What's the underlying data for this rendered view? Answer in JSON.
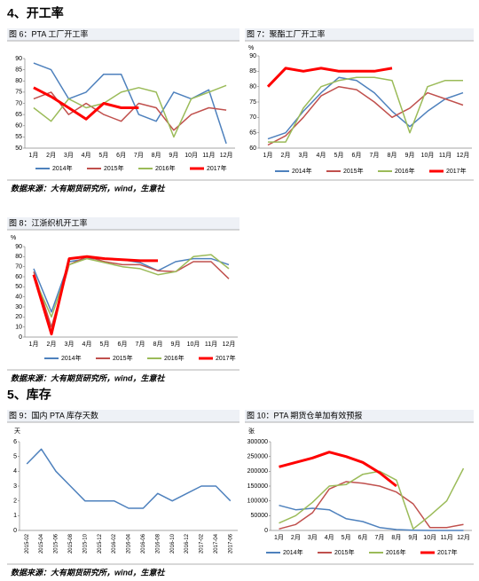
{
  "headings": [
    "4、开工率",
    "5、库存"
  ],
  "notes": [
    "数据来源：大有期货研究所，wind，生意社",
    "数据来源：大有期货研究所，wind，生意社",
    "数据来源：大有期货研究所，wind，生意社"
  ],
  "chart_data": [
    {
      "type": "line",
      "title": "图 6：PTA 工厂开工率",
      "legend": "bottom",
      "categories": [
        "1月",
        "2月",
        "3月",
        "4月",
        "5月",
        "6月",
        "7月",
        "8月",
        "9月",
        "10月",
        "11月",
        "12月"
      ],
      "ylim": [
        50,
        90
      ],
      "yticks": [
        50,
        55,
        60,
        65,
        70,
        75,
        80,
        85,
        90
      ],
      "series": [
        {
          "name": "2014年",
          "color": "#4e81bd",
          "values": [
            88,
            85,
            72,
            75,
            83,
            83,
            65,
            62,
            75,
            72,
            76,
            52
          ]
        },
        {
          "name": "2015年",
          "color": "#c0504d",
          "values": [
            72,
            75,
            65,
            70,
            65,
            62,
            70,
            68,
            58,
            65,
            68,
            67
          ]
        },
        {
          "name": "2016年",
          "color": "#9bbb59",
          "values": [
            68,
            62,
            72,
            68,
            70,
            75,
            77,
            75,
            55,
            72,
            75,
            78
          ]
        },
        {
          "name": "2017年",
          "color": "#ff0000",
          "line_width": 3,
          "values": [
            77,
            73,
            68,
            63,
            70,
            68,
            68,
            null,
            null,
            null,
            null,
            null
          ]
        }
      ]
    },
    {
      "type": "line",
      "title": "图 7：聚酯工厂开工率",
      "y_unit": "%",
      "legend": "bottom",
      "categories": [
        "1月",
        "2月",
        "3月",
        "4月",
        "5月",
        "6月",
        "7月",
        "8月",
        "9月",
        "10月",
        "11月",
        "12月"
      ],
      "ylim": [
        60,
        90
      ],
      "yticks": [
        60,
        65,
        70,
        75,
        80,
        85,
        90
      ],
      "series": [
        {
          "name": "2014年",
          "color": "#4e81bd",
          "values": [
            63,
            65,
            72,
            78,
            83,
            82,
            78,
            72,
            67,
            72,
            76,
            78
          ]
        },
        {
          "name": "2015年",
          "color": "#c0504d",
          "values": [
            61,
            64,
            70,
            77,
            80,
            79,
            75,
            70,
            73,
            78,
            76,
            74
          ]
        },
        {
          "name": "2016年",
          "color": "#9bbb59",
          "values": [
            62,
            62,
            73,
            80,
            82,
            83,
            83,
            82,
            65,
            80,
            82,
            82
          ]
        },
        {
          "name": "2017年",
          "color": "#ff0000",
          "line_width": 3,
          "values": [
            80,
            86,
            85,
            86,
            85,
            85,
            85,
            86,
            null,
            null,
            null,
            null
          ]
        }
      ]
    },
    {
      "type": "line",
      "title": "图 8：江浙织机开工率",
      "y_unit": "%",
      "legend": "bottom",
      "categories": [
        "1月",
        "2月",
        "3月",
        "4月",
        "5月",
        "6月",
        "7月",
        "8月",
        "9月",
        "10月",
        "11月",
        "12月"
      ],
      "ylim": [
        0,
        90
      ],
      "yticks": [
        0,
        10,
        20,
        30,
        40,
        50,
        60,
        70,
        80,
        90
      ],
      "series": [
        {
          "name": "2014年",
          "color": "#4e81bd",
          "values": [
            68,
            25,
            75,
            78,
            78,
            77,
            74,
            66,
            75,
            78,
            78,
            72
          ]
        },
        {
          "name": "2015年",
          "color": "#c0504d",
          "values": [
            65,
            10,
            72,
            80,
            75,
            72,
            72,
            66,
            65,
            75,
            75,
            58
          ]
        },
        {
          "name": "2016年",
          "color": "#9bbb59",
          "values": [
            60,
            20,
            72,
            78,
            74,
            70,
            68,
            62,
            65,
            80,
            82,
            68
          ]
        },
        {
          "name": "2017年",
          "color": "#ff0000",
          "line_width": 3,
          "values": [
            62,
            3,
            78,
            80,
            78,
            77,
            76,
            76,
            null,
            null,
            null,
            null
          ]
        }
      ]
    },
    {
      "type": "line",
      "title": "图 9：国内 PTA 库存天数",
      "y_unit": "天",
      "rotate_x": true,
      "categories": [
        "2015-02",
        "2015-04",
        "2015-06",
        "2015-08",
        "2015-10",
        "2015-12",
        "2016-02",
        "2016-04",
        "2016-06",
        "2016-08",
        "2016-10",
        "2016-12",
        "2017-02",
        "2017-04",
        "2017-06"
      ],
      "ylim": [
        0,
        6
      ],
      "yticks": [
        0,
        1,
        2,
        3,
        4,
        5,
        6
      ],
      "series": [
        {
          "color": "#4e81bd",
          "values": [
            4.5,
            5.5,
            4,
            3,
            2,
            2,
            2,
            1.5,
            1.5,
            2.5,
            2,
            2.5,
            3,
            3,
            2
          ]
        }
      ]
    },
    {
      "type": "line",
      "title": "图 10：PTA 期货仓单加有效预报",
      "y_unit": "张",
      "legend": "bottom",
      "categories": [
        "1月",
        "2月",
        "3月",
        "4月",
        "5月",
        "6月",
        "7月",
        "8月",
        "9月",
        "10月",
        "11月",
        "12月"
      ],
      "ylim": [
        0,
        300000
      ],
      "yticks": [
        0,
        50000,
        100000,
        150000,
        200000,
        250000,
        300000
      ],
      "series": [
        {
          "name": "2014年",
          "color": "#4e81bd",
          "values": [
            85000,
            70000,
            75000,
            70000,
            40000,
            30000,
            10000,
            3000,
            1000,
            0,
            0,
            0
          ]
        },
        {
          "name": "2015年",
          "color": "#c0504d",
          "values": [
            5000,
            20000,
            60000,
            140000,
            165000,
            160000,
            150000,
            130000,
            90000,
            10000,
            10000,
            20000
          ]
        },
        {
          "name": "2016年",
          "color": "#9bbb59",
          "values": [
            25000,
            50000,
            95000,
            150000,
            155000,
            190000,
            200000,
            170000,
            5000,
            50000,
            100000,
            210000
          ]
        },
        {
          "name": "2017年",
          "color": "#ff0000",
          "line_width": 3,
          "values": [
            215000,
            230000,
            245000,
            265000,
            250000,
            230000,
            195000,
            150000,
            null,
            null,
            null,
            null
          ]
        }
      ]
    }
  ]
}
